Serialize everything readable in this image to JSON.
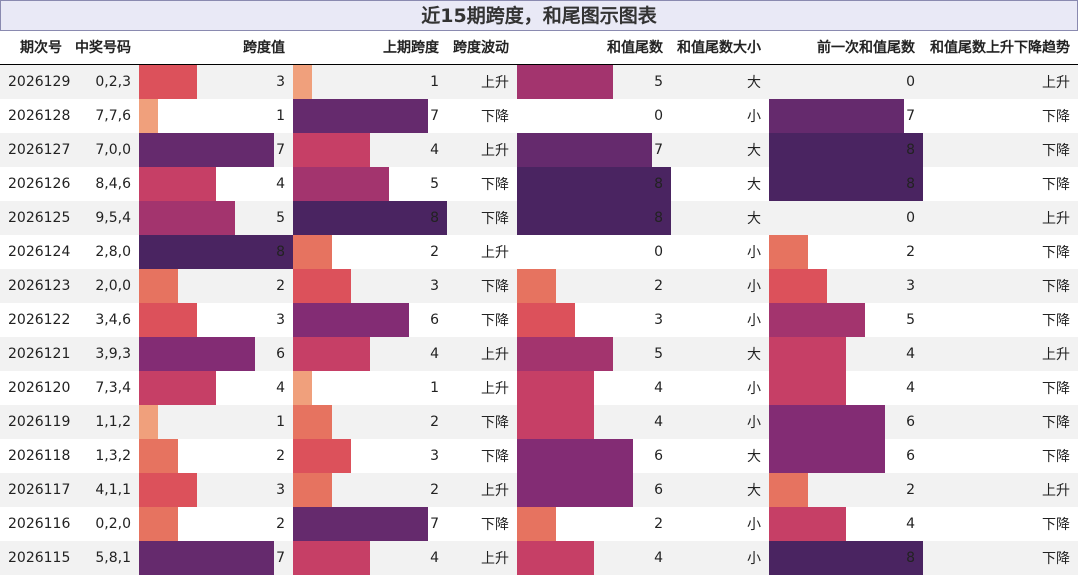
{
  "title": "近15期跨度，和尾图示图表",
  "columns": [
    "期次号",
    "中奖号码",
    "跨度值",
    "上期跨度",
    "跨度波动",
    "和值尾数",
    "和值尾数大小",
    "前一次和值尾数",
    "和值尾数上升下降趋势"
  ],
  "chart_data": {
    "type": "table",
    "value_range": [
      0,
      8
    ],
    "colors": {
      "1": "#f0a07c",
      "2": "#e67360",
      "3": "#dc515b",
      "4": "#c63f66",
      "5": "#a3346e",
      "6": "#832c74",
      "7": "#652a6d",
      "8": "#4a2461"
    },
    "rows": [
      {
        "period": "2026129",
        "numbers": "0,2,3",
        "span": 3,
        "prev_span": 1,
        "span_wave": "上升",
        "tail": 5,
        "tail_size": "大",
        "prev_tail": 0,
        "tail_trend": "上升"
      },
      {
        "period": "2026128",
        "numbers": "7,7,6",
        "span": 1,
        "prev_span": 7,
        "span_wave": "下降",
        "tail": 0,
        "tail_size": "小",
        "prev_tail": 7,
        "tail_trend": "下降"
      },
      {
        "period": "2026127",
        "numbers": "7,0,0",
        "span": 7,
        "prev_span": 4,
        "span_wave": "上升",
        "tail": 7,
        "tail_size": "大",
        "prev_tail": 8,
        "tail_trend": "下降"
      },
      {
        "period": "2026126",
        "numbers": "8,4,6",
        "span": 4,
        "prev_span": 5,
        "span_wave": "下降",
        "tail": 8,
        "tail_size": "大",
        "prev_tail": 8,
        "tail_trend": "下降"
      },
      {
        "period": "2026125",
        "numbers": "9,5,4",
        "span": 5,
        "prev_span": 8,
        "span_wave": "下降",
        "tail": 8,
        "tail_size": "大",
        "prev_tail": 0,
        "tail_trend": "上升"
      },
      {
        "period": "2026124",
        "numbers": "2,8,0",
        "span": 8,
        "prev_span": 2,
        "span_wave": "上升",
        "tail": 0,
        "tail_size": "小",
        "prev_tail": 2,
        "tail_trend": "下降"
      },
      {
        "period": "2026123",
        "numbers": "2,0,0",
        "span": 2,
        "prev_span": 3,
        "span_wave": "下降",
        "tail": 2,
        "tail_size": "小",
        "prev_tail": 3,
        "tail_trend": "下降"
      },
      {
        "period": "2026122",
        "numbers": "3,4,6",
        "span": 3,
        "prev_span": 6,
        "span_wave": "下降",
        "tail": 3,
        "tail_size": "小",
        "prev_tail": 5,
        "tail_trend": "下降"
      },
      {
        "period": "2026121",
        "numbers": "3,9,3",
        "span": 6,
        "prev_span": 4,
        "span_wave": "上升",
        "tail": 5,
        "tail_size": "大",
        "prev_tail": 4,
        "tail_trend": "上升"
      },
      {
        "period": "2026120",
        "numbers": "7,3,4",
        "span": 4,
        "prev_span": 1,
        "span_wave": "上升",
        "tail": 4,
        "tail_size": "小",
        "prev_tail": 4,
        "tail_trend": "下降"
      },
      {
        "period": "2026119",
        "numbers": "1,1,2",
        "span": 1,
        "prev_span": 2,
        "span_wave": "下降",
        "tail": 4,
        "tail_size": "小",
        "prev_tail": 6,
        "tail_trend": "下降"
      },
      {
        "period": "2026118",
        "numbers": "1,3,2",
        "span": 2,
        "prev_span": 3,
        "span_wave": "下降",
        "tail": 6,
        "tail_size": "大",
        "prev_tail": 6,
        "tail_trend": "下降"
      },
      {
        "period": "2026117",
        "numbers": "4,1,1",
        "span": 3,
        "prev_span": 2,
        "span_wave": "上升",
        "tail": 6,
        "tail_size": "大",
        "prev_tail": 2,
        "tail_trend": "上升"
      },
      {
        "period": "2026116",
        "numbers": "0,2,0",
        "span": 2,
        "prev_span": 7,
        "span_wave": "下降",
        "tail": 2,
        "tail_size": "小",
        "prev_tail": 4,
        "tail_trend": "下降"
      },
      {
        "period": "2026115",
        "numbers": "5,8,1",
        "span": 7,
        "prev_span": 4,
        "span_wave": "上升",
        "tail": 4,
        "tail_size": "小",
        "prev_tail": 8,
        "tail_trend": "下降"
      }
    ]
  }
}
